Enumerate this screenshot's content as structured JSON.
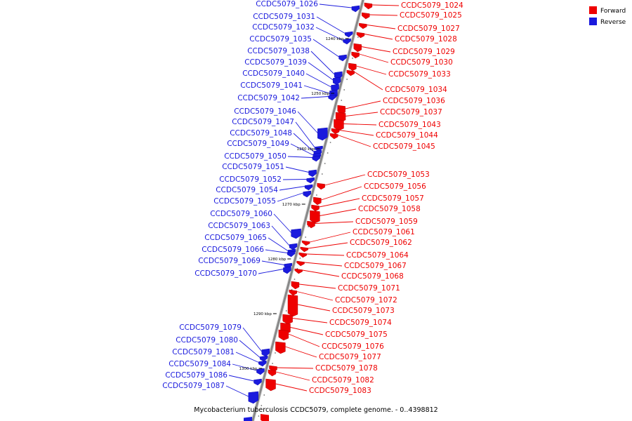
{
  "caption": "Mycobacterium tuberculosis CCDC5079, complete genome. - 0..4398812",
  "legend": [
    {
      "label": "Forward",
      "color": "#ee0000"
    },
    {
      "label": "Reverse",
      "color": "#1a1add"
    }
  ],
  "colors": {
    "forward": "#ee0000",
    "reverse": "#1a1add",
    "backbone": "#888888"
  },
  "scale_marks": [
    "1240 kbp",
    "1250 kbp",
    "1260 kbp",
    "1270 kbp",
    "1280 kbp",
    "1290 kbp",
    "1300 kbp"
  ],
  "genes_forward": [
    "CCDC5079_1024",
    "CCDC5079_1025",
    "CCDC5079_1027",
    "CCDC5079_1028",
    "CCDC5079_1029",
    "CCDC5079_1030",
    "CCDC5079_1033",
    "CCDC5079_1034",
    "CCDC5079_1036",
    "CCDC5079_1037",
    "CCDC5079_1043",
    "CCDC5079_1044",
    "CCDC5079_1045",
    "CCDC5079_1053",
    "CCDC5079_1056",
    "CCDC5079_1057",
    "CCDC5079_1058",
    "CCDC5079_1059",
    "CCDC5079_1061",
    "CCDC5079_1062",
    "CCDC5079_1064",
    "CCDC5079_1067",
    "CCDC5079_1068",
    "CCDC5079_1071",
    "CCDC5079_1072",
    "CCDC5079_1073",
    "CCDC5079_1074",
    "CCDC5079_1075",
    "CCDC5079_1076",
    "CCDC5079_1077",
    "CCDC5079_1078",
    "CCDC5079_1082",
    "CCDC5079_1083"
  ],
  "genes_reverse": [
    "CCDC5079_1026",
    "CCDC5079_1031",
    "CCDC5079_1032",
    "CCDC5079_1035",
    "CCDC5079_1038",
    "CCDC5079_1039",
    "CCDC5079_1040",
    "CCDC5079_1041",
    "CCDC5079_1042",
    "CCDC5079_1046",
    "CCDC5079_1047",
    "CCDC5079_1048",
    "CCDC5079_1049",
    "CCDC5079_1050",
    "CCDC5079_1051",
    "CCDC5079_1052",
    "CCDC5079_1054",
    "CCDC5079_1055",
    "CCDC5079_1060",
    "CCDC5079_1063",
    "CCDC5079_1065",
    "CCDC5079_1066",
    "CCDC5079_1069",
    "CCDC5079_1070",
    "CCDC5079_1079",
    "CCDC5079_1080",
    "CCDC5079_1081",
    "CCDC5079_1084",
    "CCDC5079_1086",
    "CCDC5079_1087"
  ]
}
